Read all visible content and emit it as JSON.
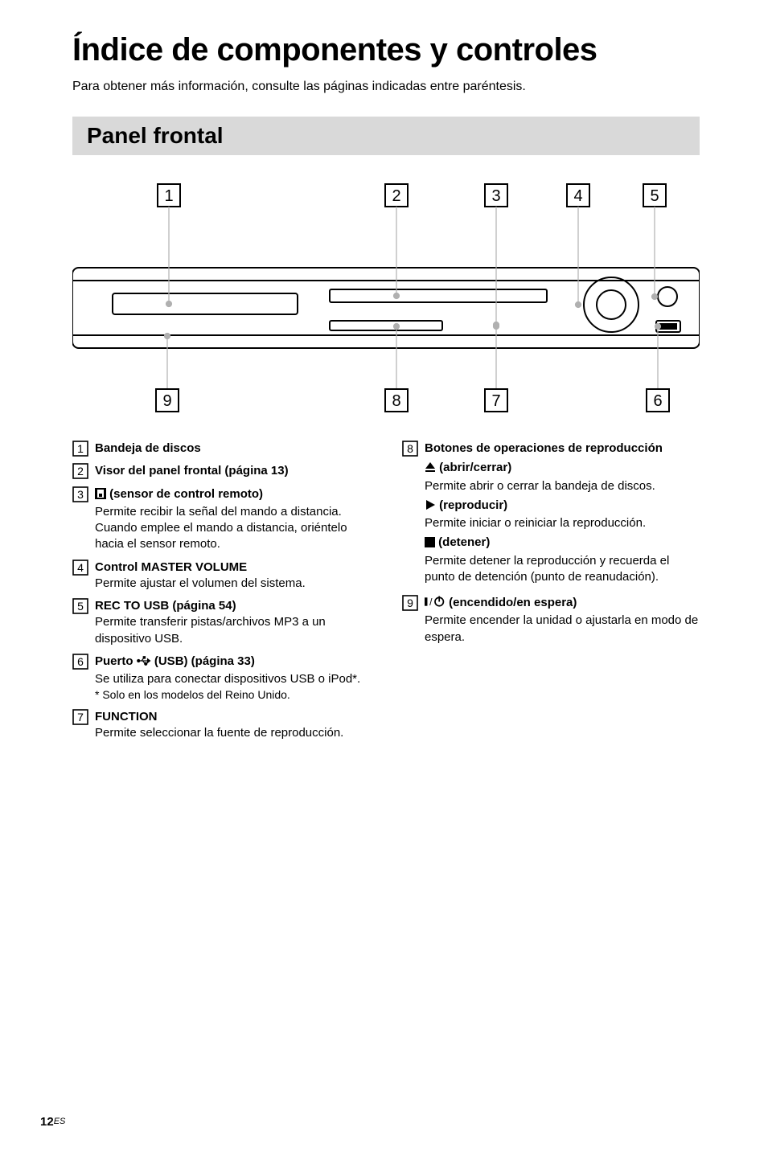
{
  "page": {
    "title": "Índice de componentes y controles",
    "subtitle": "Para obtener más información, consulte las páginas indicadas entre paréntesis.",
    "section_header": "Panel frontal",
    "page_number": "12",
    "page_lang": "ES"
  },
  "diagram": {
    "top_labels": [
      "1",
      "2",
      "3",
      "4",
      "5"
    ],
    "bottom_labels": [
      "9",
      "8",
      "7",
      "6"
    ],
    "top_x": [
      120,
      403,
      527,
      629,
      724
    ],
    "bottom_x": [
      118,
      403,
      527,
      728
    ],
    "colors": {
      "stroke": "#000000",
      "fill": "#ffffff",
      "shade": "#b0b0b0"
    }
  },
  "left_items": [
    {
      "num": "1",
      "title": "Bandeja de discos"
    },
    {
      "num": "2",
      "title": "Visor del panel frontal (página 13)"
    },
    {
      "num": "3",
      "icon": "remote",
      "title": "(sensor de control remoto)",
      "desc": "Permite recibir la señal del mando a distancia. Cuando emplee el mando a distancia, oriéntelo hacia el sensor remoto."
    },
    {
      "num": "4",
      "title": "Control MASTER VOLUME",
      "desc": "Permite ajustar el volumen del sistema."
    },
    {
      "num": "5",
      "title": "REC TO USB (página 54)",
      "desc": "Permite transferir pistas/archivos MP3 a un dispositivo USB."
    },
    {
      "num": "6",
      "icon": "usb",
      "title_pre": "Puerto ",
      "title_post": " (USB) (página 33)",
      "desc": "Se utiliza para conectar dispositivos USB o iPod*.",
      "footnote": "* Solo en los modelos del Reino Unido."
    },
    {
      "num": "7",
      "title": "FUNCTION",
      "desc": "Permite seleccionar la fuente de reproducción."
    }
  ],
  "right_items": [
    {
      "num": "8",
      "title": "Botones de operaciones de reproducción",
      "subs": [
        {
          "icon": "eject",
          "label": "(abrir/cerrar)",
          "desc": "Permite abrir o cerrar la bandeja de discos."
        },
        {
          "icon": "play",
          "label": "(reproducir)",
          "desc": "Permite iniciar o reiniciar la reproducción."
        },
        {
          "icon": "stop",
          "label": "(detener)",
          "desc": "Permite detener la reproducción y recuerda el punto de detención (punto de reanudación)."
        }
      ]
    },
    {
      "num": "9",
      "icon": "power",
      "title_post": "(encendido/en espera)",
      "desc": "Permite encender la unidad o ajustarla en modo de espera."
    }
  ]
}
